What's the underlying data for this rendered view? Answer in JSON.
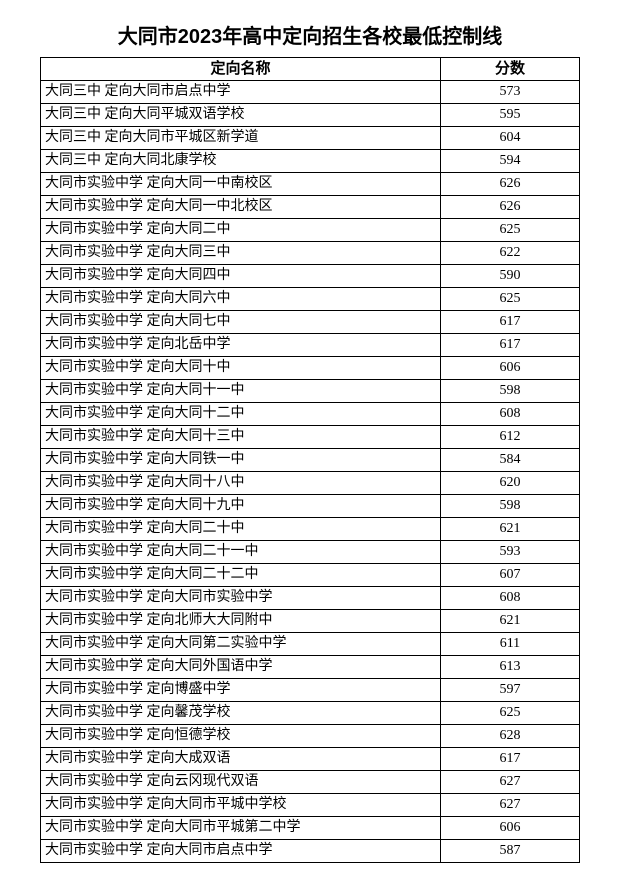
{
  "title": "大同市2023年高中定向招生各校最低控制线",
  "table": {
    "columns": [
      "定向名称",
      "分数"
    ],
    "rows": [
      [
        "大同三中 定向大同市启点中学",
        "573"
      ],
      [
        "大同三中 定向大同平城双语学校",
        "595"
      ],
      [
        "大同三中 定向大同市平城区新学道",
        "604"
      ],
      [
        "大同三中 定向大同北康学校",
        "594"
      ],
      [
        "大同市实验中学 定向大同一中南校区",
        "626"
      ],
      [
        "大同市实验中学 定向大同一中北校区",
        "626"
      ],
      [
        "大同市实验中学 定向大同二中",
        "625"
      ],
      [
        "大同市实验中学 定向大同三中",
        "622"
      ],
      [
        "大同市实验中学 定向大同四中",
        "590"
      ],
      [
        "大同市实验中学 定向大同六中",
        "625"
      ],
      [
        "大同市实验中学 定向大同七中",
        "617"
      ],
      [
        "大同市实验中学 定向北岳中学",
        "617"
      ],
      [
        "大同市实验中学 定向大同十中",
        "606"
      ],
      [
        "大同市实验中学 定向大同十一中",
        "598"
      ],
      [
        "大同市实验中学 定向大同十二中",
        "608"
      ],
      [
        "大同市实验中学 定向大同十三中",
        "612"
      ],
      [
        "大同市实验中学 定向大同铁一中",
        "584"
      ],
      [
        "大同市实验中学 定向大同十八中",
        "620"
      ],
      [
        "大同市实验中学 定向大同十九中",
        "598"
      ],
      [
        "大同市实验中学 定向大同二十中",
        "621"
      ],
      [
        "大同市实验中学 定向大同二十一中",
        "593"
      ],
      [
        "大同市实验中学 定向大同二十二中",
        "607"
      ],
      [
        "大同市实验中学 定向大同市实验中学",
        "608"
      ],
      [
        "大同市实验中学 定向北师大大同附中",
        "621"
      ],
      [
        "大同市实验中学 定向大同第二实验中学",
        "611"
      ],
      [
        "大同市实验中学 定向大同外国语中学",
        "613"
      ],
      [
        "大同市实验中学 定向博盛中学",
        "597"
      ],
      [
        "大同市实验中学 定向馨茂学校",
        "625"
      ],
      [
        "大同市实验中学 定向恒德学校",
        "628"
      ],
      [
        "大同市实验中学 定向大成双语",
        "617"
      ],
      [
        "大同市实验中学 定向云冈现代双语",
        "627"
      ],
      [
        "大同市实验中学 定向大同市平城中学校",
        "627"
      ],
      [
        "大同市实验中学 定向大同市平城第二中学",
        "606"
      ],
      [
        "大同市实验中学 定向大同市启点中学",
        "587"
      ]
    ]
  }
}
